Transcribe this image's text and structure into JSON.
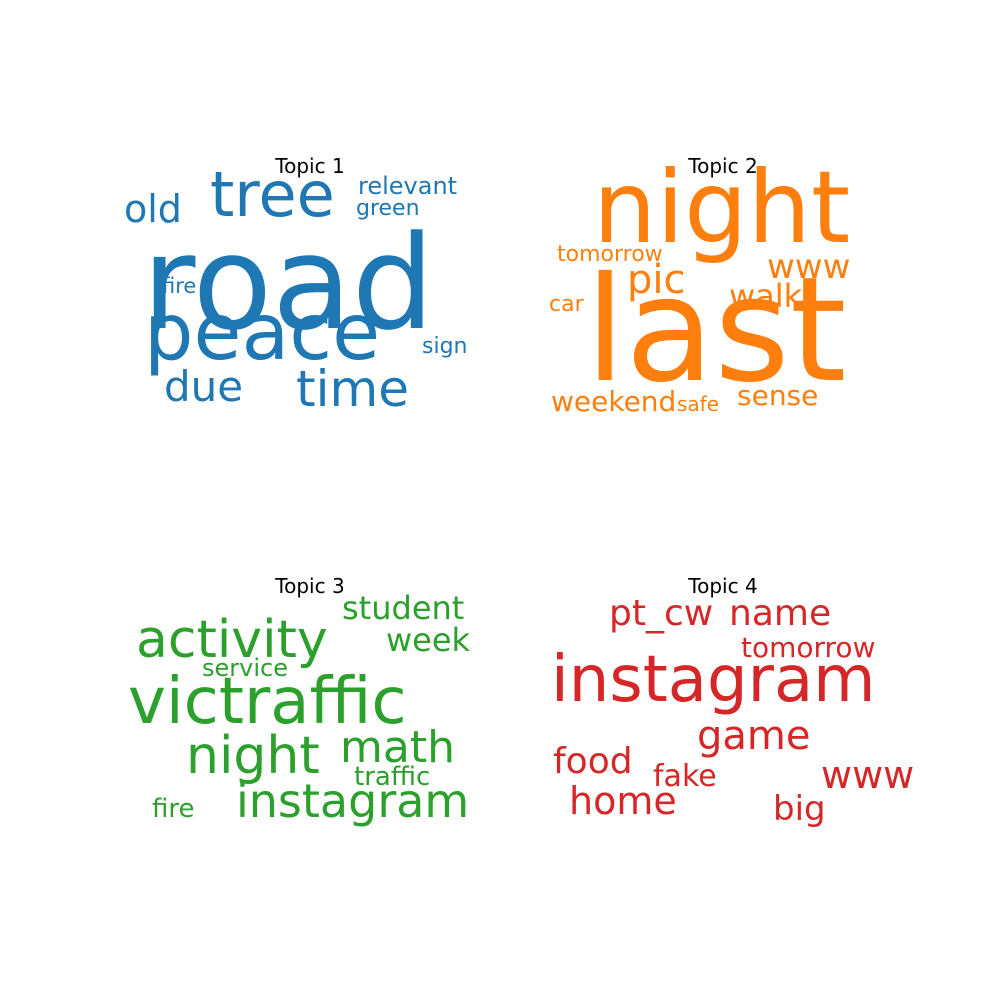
{
  "topics": [
    {
      "title": "Topic 1",
      "color": "#1f77b4",
      "words": [
        {
          "text": "road",
          "size": 130
        },
        {
          "text": "peace",
          "size": 78
        },
        {
          "text": "tree",
          "size": 62
        },
        {
          "text": "time",
          "size": 50
        },
        {
          "text": "due",
          "size": 42
        },
        {
          "text": "old",
          "size": 38
        },
        {
          "text": "relevant",
          "size": 24
        },
        {
          "text": "green",
          "size": 22
        },
        {
          "text": "fire",
          "size": 21
        },
        {
          "text": "sign",
          "size": 22
        }
      ]
    },
    {
      "title": "Topic 2",
      "color": "#ff7f0e",
      "words": [
        {
          "text": "last",
          "size": 145
        },
        {
          "text": "night",
          "size": 100
        },
        {
          "text": "pic",
          "size": 40
        },
        {
          "text": "www",
          "size": 34
        },
        {
          "text": "walk",
          "size": 32
        },
        {
          "text": "tomorrow",
          "size": 22
        },
        {
          "text": "car",
          "size": 22
        },
        {
          "text": "weekend",
          "size": 28
        },
        {
          "text": "safe",
          "size": 20
        },
        {
          "text": "sense",
          "size": 28
        }
      ]
    },
    {
      "title": "Topic 3",
      "color": "#2ca02c",
      "words": [
        {
          "text": "victraffic",
          "size": 64
        },
        {
          "text": "activity",
          "size": 52
        },
        {
          "text": "night",
          "size": 52
        },
        {
          "text": "instagram",
          "size": 46
        },
        {
          "text": "math",
          "size": 44
        },
        {
          "text": "student",
          "size": 32
        },
        {
          "text": "week",
          "size": 32
        },
        {
          "text": "service",
          "size": 24
        },
        {
          "text": "traffic",
          "size": 26
        },
        {
          "text": "fire",
          "size": 26
        }
      ]
    },
    {
      "title": "Topic 4",
      "color": "#d62728",
      "words": [
        {
          "text": "instagram",
          "size": 64
        },
        {
          "text": "pt_cw",
          "size": 36
        },
        {
          "text": "name",
          "size": 36
        },
        {
          "text": "tomorrow",
          "size": 28
        },
        {
          "text": "game",
          "size": 40
        },
        {
          "text": "food",
          "size": 36
        },
        {
          "text": "fake",
          "size": 30
        },
        {
          "text": "www",
          "size": 38
        },
        {
          "text": "home",
          "size": 38
        },
        {
          "text": "big",
          "size": 34
        }
      ]
    }
  ]
}
